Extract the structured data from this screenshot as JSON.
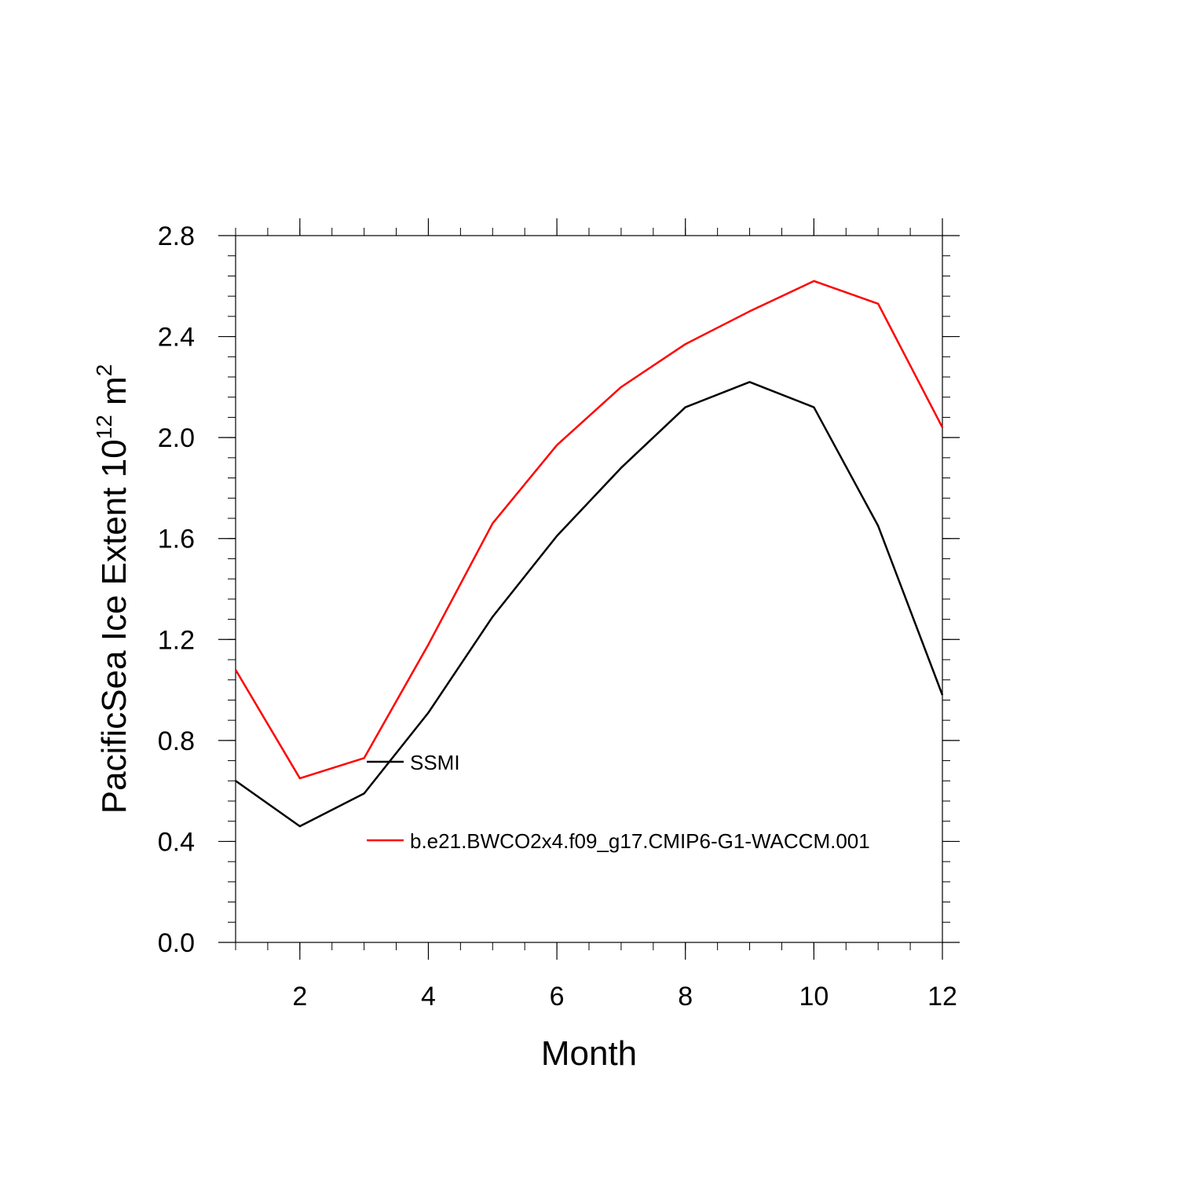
{
  "chart_data": {
    "type": "line",
    "xlabel": "Month",
    "ylabel": {
      "prefix": "PacificSea Ice Extent 10",
      "exponent": "12",
      "unit": " m",
      "unit_exponent": "2"
    },
    "xlim": [
      1,
      12
    ],
    "ylim": [
      0,
      2.8
    ],
    "x_ticks": [
      2,
      4,
      6,
      8,
      10,
      12
    ],
    "x_tick_labels": [
      "2",
      "4",
      "6",
      "8",
      "10",
      "12"
    ],
    "y_ticks": [
      0,
      0.4,
      0.8,
      1.2,
      1.6,
      2.0,
      2.4,
      2.8
    ],
    "y_tick_labels": [
      "0.0",
      "0.4",
      "0.8",
      "1.2",
      "1.6",
      "2.0",
      "2.4",
      "2.8"
    ],
    "x": [
      1,
      2,
      3,
      4,
      5,
      6,
      7,
      8,
      9,
      10,
      11,
      12
    ],
    "series": [
      {
        "name": "SSMI",
        "color": "#000000",
        "values": [
          0.64,
          0.46,
          0.59,
          0.91,
          1.29,
          1.61,
          1.88,
          2.12,
          2.22,
          2.12,
          1.65,
          0.98
        ]
      },
      {
        "name": "b.e21.BWCO2x4.f09_g17.CMIP6-G1-WACCM.001",
        "color": "#ff0000",
        "values": [
          1.08,
          0.65,
          0.73,
          1.18,
          1.66,
          1.97,
          2.2,
          2.37,
          2.5,
          2.62,
          2.53,
          2.04
        ]
      }
    ],
    "legend": "inside-lower-left",
    "grid": false
  }
}
